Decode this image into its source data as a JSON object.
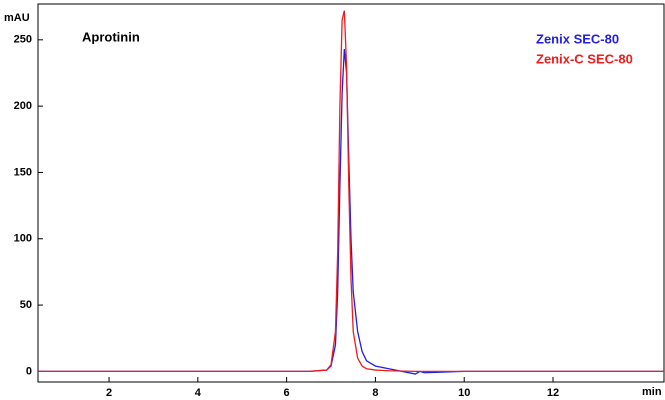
{
  "chart_data": {
    "type": "line",
    "title": "Aprotinin",
    "y_label": "mAU",
    "x_label": "min",
    "x": [
      0.4,
      6.5,
      6.9,
      7.0,
      7.1,
      7.15,
      7.2,
      7.25,
      7.3,
      7.35,
      7.4,
      7.45,
      7.5,
      7.6,
      7.7,
      7.8,
      8.0,
      8.3,
      8.9,
      9.0,
      9.1,
      10,
      12,
      14.5
    ],
    "series": [
      {
        "name": "Zenix SEC-80",
        "color": "#1f1fe6",
        "values": [
          0,
          0,
          1,
          4,
          20,
          60,
          140,
          210,
          243,
          225,
          160,
          100,
          60,
          30,
          15,
          8,
          4,
          2,
          -2,
          0,
          -1,
          0,
          0,
          0
        ]
      },
      {
        "name": "Zenix-C SEC-80",
        "color": "#ee1c1c",
        "values": [
          0,
          0,
          1,
          5,
          30,
          90,
          200,
          265,
          272,
          230,
          140,
          70,
          30,
          10,
          4,
          2,
          1,
          0.5,
          0,
          0,
          0,
          0,
          0,
          0
        ]
      }
    ],
    "xlim": [
      0.4,
      14.5
    ],
    "ylim": [
      -8,
      277
    ],
    "xticks": [
      2,
      4,
      6,
      8,
      10,
      12
    ],
    "yticks": [
      0,
      50,
      100,
      150,
      200,
      250
    ],
    "legend": "upper right"
  }
}
